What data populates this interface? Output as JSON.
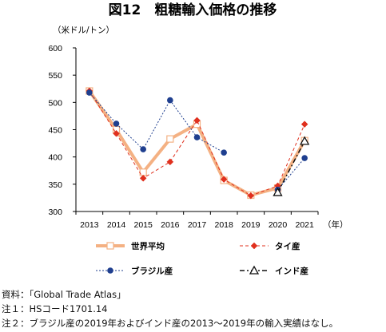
{
  "title": "図12　粗糖輸入価格の推移",
  "chart_data": {
    "type": "line",
    "ylabel": "（米ドル/トン）",
    "xlabel": "（年）",
    "ylim": [
      300,
      600
    ],
    "yticks": [
      300,
      350,
      400,
      450,
      500,
      550,
      600
    ],
    "x": [
      "2013",
      "2014",
      "2015",
      "2016",
      "2017",
      "2018",
      "2019",
      "2020",
      "2021"
    ],
    "grid": false,
    "legend": "bottom",
    "series": [
      {
        "name": "世界平均",
        "color": "#F4B183",
        "style": "thick-solid",
        "marker": "open-square",
        "values": [
          521,
          450,
          372,
          433,
          460,
          357,
          330,
          343,
          430
        ]
      },
      {
        "name": "タイ産",
        "color": "#E0301E",
        "style": "dashed",
        "marker": "diamond",
        "values": [
          521,
          443,
          361,
          391,
          467,
          359,
          329,
          347,
          460
        ]
      },
      {
        "name": "ブラジル産",
        "color": "#1F3F8F",
        "style": "dotted",
        "marker": "circle",
        "values": [
          518,
          461,
          414,
          504,
          436,
          408,
          null,
          340,
          398
        ]
      },
      {
        "name": "インド産",
        "color": "#111111",
        "style": "dash-dot",
        "marker": "open-triangle",
        "values": [
          null,
          null,
          null,
          null,
          null,
          null,
          null,
          335,
          429
        ]
      }
    ]
  },
  "notes": [
    "資料：「Global Trade Atlas」",
    "注１：HSコード1701.14",
    "注２：ブラジル産の2019年およびインド産の2013～2019年の輸入実績はなし。"
  ]
}
